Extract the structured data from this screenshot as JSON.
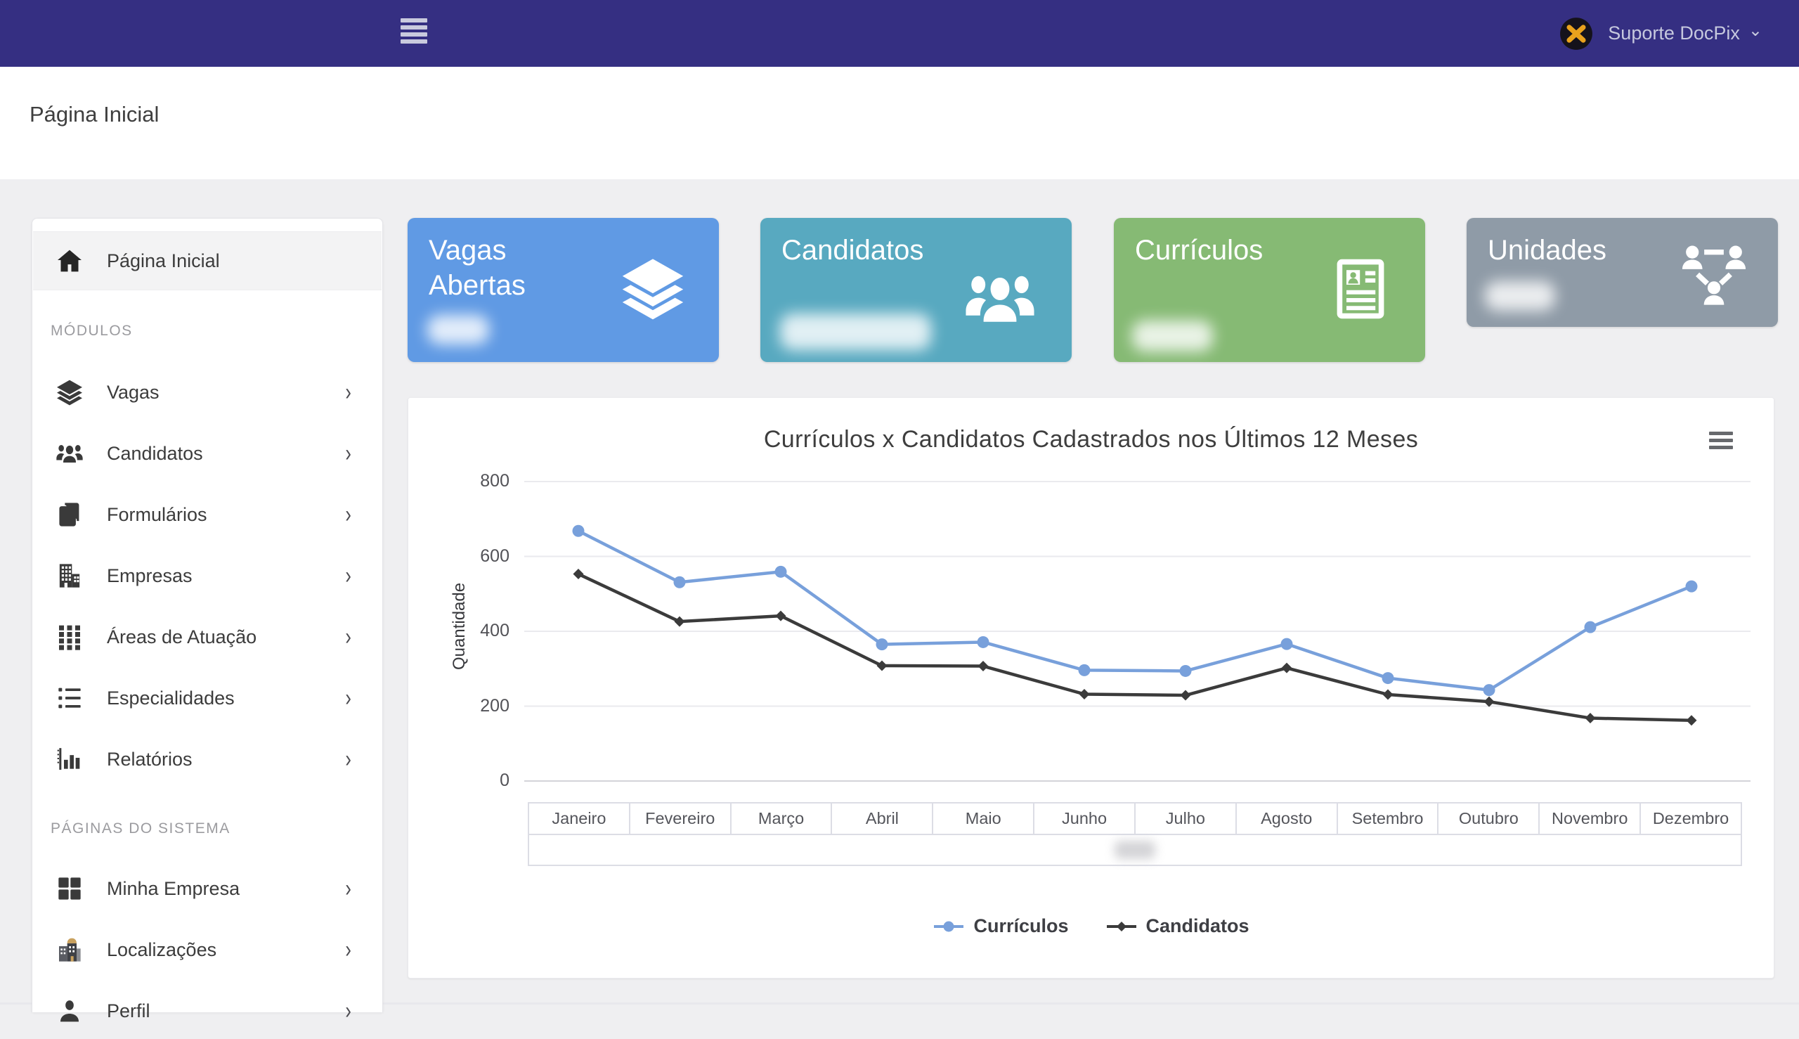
{
  "navbar": {
    "user_name": "Suporte DocPix"
  },
  "page": {
    "title": "Página Inicial"
  },
  "sidebar": {
    "home": {
      "label": "Página Inicial",
      "icon": "home-icon",
      "active": true
    },
    "sections": [
      {
        "title": "MÓDULOS",
        "items": [
          {
            "label": "Vagas",
            "icon": "layers-icon"
          },
          {
            "label": "Candidatos",
            "icon": "users-icon"
          },
          {
            "label": "Formulários",
            "icon": "forms-icon"
          },
          {
            "label": "Empresas",
            "icon": "building-icon"
          },
          {
            "label": "Áreas de Atuação",
            "icon": "grid-icon"
          },
          {
            "label": "Especialidades",
            "icon": "list-icon"
          },
          {
            "label": "Relatórios",
            "icon": "bar-chart-icon"
          }
        ]
      },
      {
        "title": "PÁGINAS DO SISTEMA",
        "items": [
          {
            "label": "Minha Empresa",
            "icon": "squares-icon"
          },
          {
            "label": "Localizações",
            "icon": "location-building-icon"
          },
          {
            "label": "Perfil",
            "icon": "user-icon"
          }
        ]
      }
    ]
  },
  "stat_cards": [
    {
      "title": "Vagas Abertas",
      "icon": "layers-icon",
      "color": "#609ae4",
      "value_hidden": true
    },
    {
      "title": "Candidatos",
      "icon": "users-icon",
      "color": "#58a9c0",
      "value_hidden": true
    },
    {
      "title": "Currículos",
      "icon": "resume-icon",
      "color": "#86ba74",
      "value_hidden": true
    },
    {
      "title": "Unidades",
      "icon": "sitemap-icon",
      "color": "#8f9ba7",
      "value_hidden": true
    }
  ],
  "chart_data": {
    "type": "line",
    "title": "Currículos x Candidatos Cadastrados nos Últimos 12 Meses",
    "categories": [
      "Janeiro",
      "Fevereiro",
      "Março",
      "Abril",
      "Maio",
      "Junho",
      "Julho",
      "Agosto",
      "Setembro",
      "Outubro",
      "Novembro",
      "Dezembro"
    ],
    "series": [
      {
        "name": "Currículos",
        "color": "#78a0db",
        "marker": "circle",
        "values": [
          668,
          531,
          559,
          365,
          371,
          296,
          294,
          366,
          275,
          243,
          411,
          520
        ]
      },
      {
        "name": "Candidatos",
        "color": "#3b3b3b",
        "marker": "diamond",
        "values": [
          553,
          426,
          441,
          308,
          307,
          232,
          229,
          302,
          231,
          212,
          168,
          162
        ]
      }
    ],
    "ylabel": "Quantidade",
    "ylim": [
      0,
      800
    ],
    "yticks": [
      0,
      200,
      400,
      600,
      800
    ],
    "grid": true,
    "legend_position": "bottom",
    "x_axis_year_hidden": true
  }
}
